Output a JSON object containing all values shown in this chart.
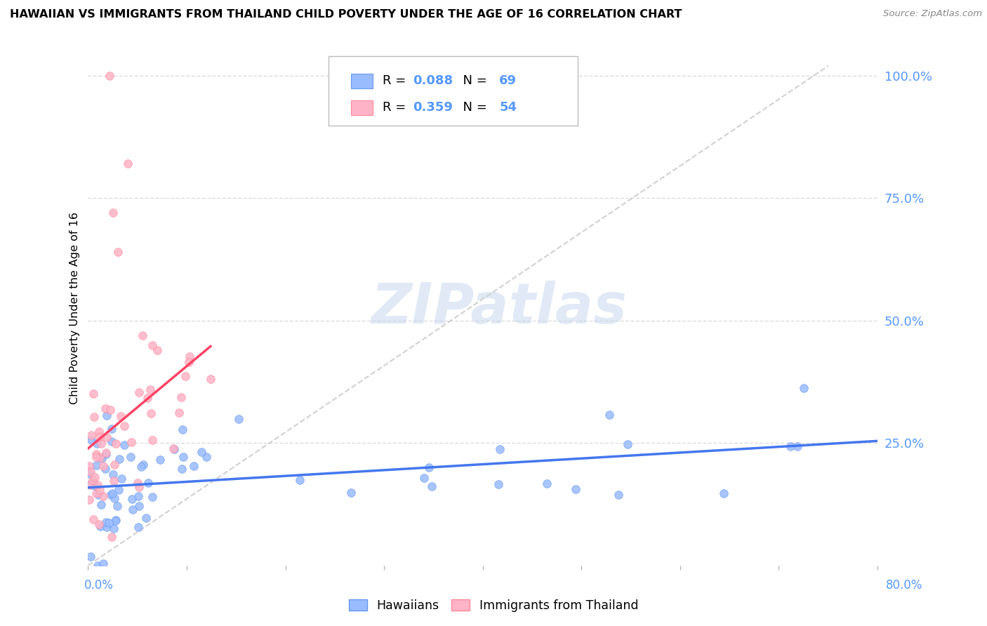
{
  "title": "HAWAIIAN VS IMMIGRANTS FROM THAILAND CHILD POVERTY UNDER THE AGE OF 16 CORRELATION CHART",
  "source": "Source: ZipAtlas.com",
  "ylabel": "Child Poverty Under the Age of 16",
  "color_hawaii": "#99BBFF",
  "color_hawaii_edge": "#6699EE",
  "color_thai": "#FFB3C6",
  "color_thai_edge": "#FF8899",
  "color_hawaii_line": "#4477EE",
  "color_thai_line": "#FF4466",
  "color_diag": "#CCCCCC",
  "color_grid": "#DDDDDD",
  "color_right_axis": "#5599FF",
  "watermark_color": "#C5D5EE",
  "xlim": [
    0.0,
    0.8
  ],
  "ylim": [
    0.0,
    1.05
  ],
  "right_ytick_vals": [
    0.0,
    0.25,
    0.5,
    0.75,
    1.0
  ],
  "right_ytick_labels": [
    "",
    "25.0%",
    "50.0%",
    "75.0%",
    "100.0%"
  ],
  "hawaii_R": 0.088,
  "hawaii_N": 69,
  "thai_R": 0.359,
  "thai_N": 54
}
